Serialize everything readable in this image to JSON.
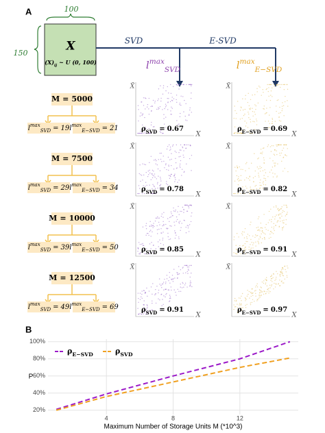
{
  "panel_a": {
    "label": "A",
    "matrix": {
      "cols": "100",
      "rows": "150",
      "symbol": "X",
      "dist_pre": "(X)",
      "dist_sub": "ij",
      "dist_post": "~ U (0, 100)"
    },
    "equals": "=",
    "scatter_y": "X̄",
    "scatter_x": "X",
    "methods": [
      {
        "name": "SVD",
        "color": "#8e44ad",
        "dot_color": "#9b6bc9",
        "l_sym": "l",
        "l_sup": "max",
        "l_sub": "SVD",
        "rho_sym": "ρ",
        "rho_sub": "SVD"
      },
      {
        "name": "E-SVD",
        "color": "#e0a020",
        "dot_color": "#e3c060",
        "l_sym": "l",
        "l_sup": "max",
        "l_sub": "E−SVD",
        "rho_sym": "ρ",
        "rho_sub": "E−SVD"
      }
    ],
    "blocks": [
      {
        "m_sym": "M",
        "m": 5000,
        "l": [
          19,
          21
        ],
        "rho": [
          0.67,
          0.69
        ]
      },
      {
        "m_sym": "M",
        "m": 7500,
        "l": [
          29,
          34
        ],
        "rho": [
          0.78,
          0.82
        ]
      },
      {
        "m_sym": "M",
        "m": 10000,
        "l": [
          39,
          50
        ],
        "rho": [
          0.85,
          0.91
        ]
      },
      {
        "m_sym": "M",
        "m": 12500,
        "l": [
          49,
          69
        ],
        "rho": [
          0.91,
          0.97
        ]
      }
    ]
  },
  "chart_data": {
    "type": "line",
    "panel_label": "B",
    "x_label": "Maximum Number of Storage Units M (*10^3)",
    "y_label": "P",
    "x": [
      1,
      4,
      8,
      12,
      15
    ],
    "series": [
      {
        "name": "ρE−SVD",
        "color": "#9b19c8",
        "values": [
          21,
          39,
          60,
          80,
          100
        ]
      },
      {
        "name": "ρSVD",
        "color": "#f0a020",
        "values": [
          20,
          36,
          53,
          70,
          81
        ]
      }
    ],
    "xlim": [
      0.5,
      15.5
    ],
    "ylim": [
      15,
      103
    ],
    "xticks": [
      4,
      8,
      12
    ],
    "yticks": [
      {
        "value": 20,
        "label": "20%"
      },
      {
        "value": 40,
        "label": "40%"
      },
      {
        "value": 60,
        "label": "60%"
      },
      {
        "value": 80,
        "label": "80%"
      },
      {
        "value": 100,
        "label": "100%"
      }
    ],
    "grid": true,
    "legend": "top-left"
  }
}
